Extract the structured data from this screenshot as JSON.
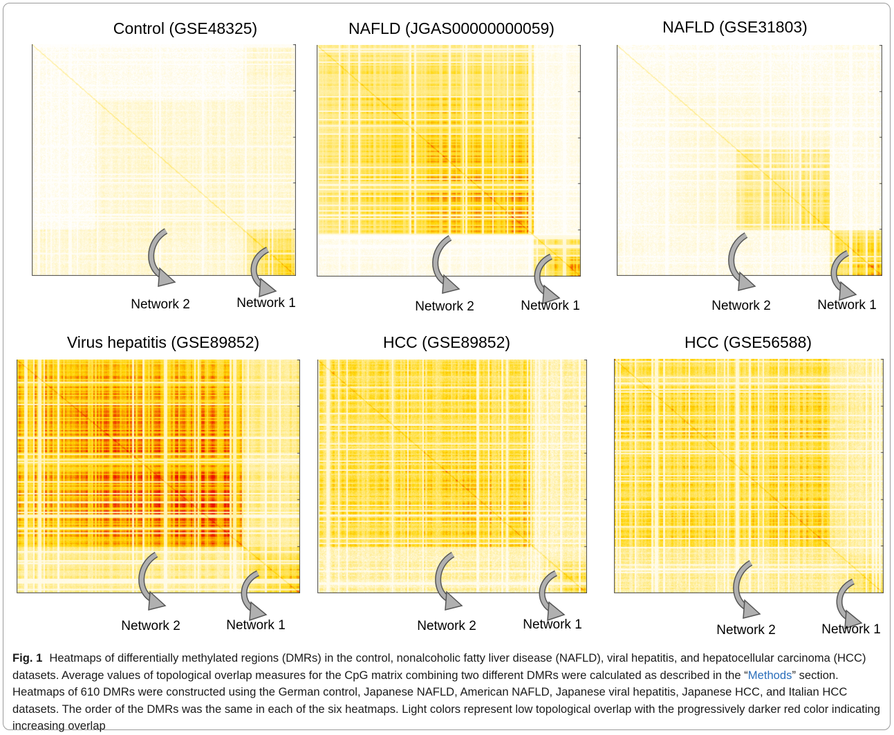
{
  "figure": {
    "panels": [
      {
        "title": "Control (GSE48325)",
        "network_labels": [
          "Network 2",
          "Network 1"
        ]
      },
      {
        "title": "NAFLD (JGAS00000000059)",
        "network_labels": [
          "Network 2",
          "Network 1"
        ]
      },
      {
        "title": "NAFLD (GSE31803)",
        "network_labels": [
          "Network 2",
          "Network 1"
        ]
      },
      {
        "title": "Virus hepatitis (GSE89852)",
        "network_labels": [
          "Network 2",
          "Network 1"
        ]
      },
      {
        "title": "HCC (GSE89852)",
        "network_labels": [
          "Network 2",
          "Network 1"
        ]
      },
      {
        "title": "HCC (GSE56588)",
        "network_labels": [
          "Network 2",
          "Network 1"
        ]
      }
    ],
    "colors": {
      "low_overlap": "#ffffff",
      "mid_overlap": "#ffd400",
      "high_overlap": "#ee1100"
    }
  },
  "caption": {
    "label": "Fig. 1",
    "part1": "Heatmaps of differentially methylated regions (DMRs) in the control, nonalcoholic fatty liver disease (NAFLD), viral hepatitis, and hepatocellular carcinoma (HCC) datasets. Average values of topological overlap measures for the CpG matrix combining two different DMRs were calculated as described in the “",
    "link": "Methods",
    "part2": "” section. Heatmaps of 610 DMRs were constructed using the German control, Japanese NAFLD, American NAFLD, Japanese viral hepatitis, Japanese HCC, and Italian HCC datasets. The order of the DMRs was the same in each of the six heatmaps. Light colors represent low topological overlap with the progressively darker red color indicating increasing overlap"
  }
}
